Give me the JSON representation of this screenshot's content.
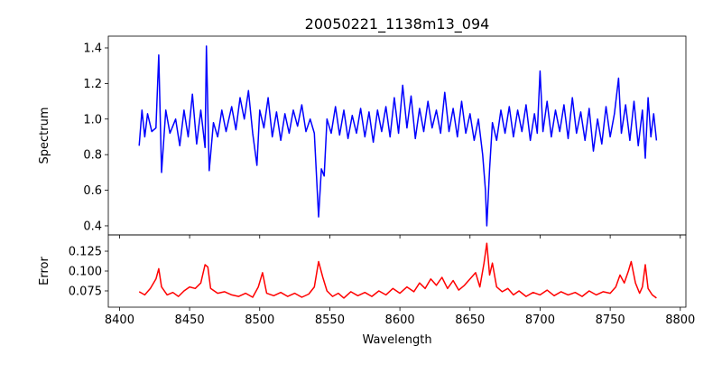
{
  "chart_data": [
    {
      "type": "line",
      "title": "20050221_1138m13_094",
      "xlabel": "",
      "ylabel": "Spectrum",
      "xlim": [
        8392,
        8804
      ],
      "ylim": [
        0.349,
        1.466
      ],
      "yticks": [
        0.4,
        0.6,
        0.8,
        1.0,
        1.2,
        1.4
      ],
      "ytick_labels": [
        "0.4",
        "0.6",
        "0.8",
        "1.0",
        "1.2",
        "1.4"
      ],
      "grid": false,
      "color": "#0000ff",
      "series": [
        {
          "name": "Spectrum",
          "x": [
            8414,
            8416,
            8418,
            8420,
            8423,
            8426,
            8428,
            8430,
            8433,
            8436,
            8440,
            8443,
            8446,
            8449,
            8452,
            8455,
            8458,
            8461,
            8462,
            8464,
            8467,
            8470,
            8473,
            8476,
            8480,
            8483,
            8486,
            8489,
            8492,
            8495,
            8498,
            8500,
            8503,
            8506,
            8509,
            8512,
            8515,
            8518,
            8521,
            8524,
            8527,
            8530,
            8533,
            8536,
            8539,
            8541,
            8542,
            8544,
            8546,
            8548,
            8551,
            8554,
            8557,
            8560,
            8563,
            8566,
            8569,
            8572,
            8575,
            8578,
            8581,
            8584,
            8587,
            8590,
            8593,
            8596,
            8599,
            8602,
            8605,
            8608,
            8611,
            8614,
            8617,
            8620,
            8623,
            8626,
            8629,
            8632,
            8635,
            8638,
            8641,
            8644,
            8647,
            8650,
            8653,
            8656,
            8659,
            8661,
            8662,
            8664,
            8666,
            8669,
            8672,
            8675,
            8678,
            8681,
            8684,
            8687,
            8690,
            8693,
            8696,
            8698,
            8700,
            8702,
            8705,
            8708,
            8711,
            8714,
            8717,
            8720,
            8723,
            8726,
            8729,
            8732,
            8735,
            8738,
            8741,
            8744,
            8747,
            8750,
            8753,
            8756,
            8758,
            8761,
            8764,
            8767,
            8770,
            8773,
            8775,
            8777,
            8779,
            8781,
            8783
          ],
          "y": [
            0.85,
            1.05,
            0.9,
            1.03,
            0.93,
            0.95,
            1.36,
            0.7,
            1.05,
            0.92,
            1.0,
            0.85,
            1.05,
            0.9,
            1.14,
            0.86,
            1.05,
            0.84,
            1.41,
            0.71,
            0.98,
            0.9,
            1.05,
            0.93,
            1.07,
            0.94,
            1.12,
            1.0,
            1.16,
            0.92,
            0.74,
            1.05,
            0.95,
            1.12,
            0.9,
            1.04,
            0.88,
            1.03,
            0.92,
            1.05,
            0.96,
            1.08,
            0.93,
            1.0,
            0.92,
            0.6,
            0.45,
            0.72,
            0.68,
            1.0,
            0.92,
            1.07,
            0.91,
            1.05,
            0.89,
            1.02,
            0.92,
            1.06,
            0.9,
            1.04,
            0.87,
            1.05,
            0.93,
            1.07,
            0.9,
            1.12,
            0.92,
            1.19,
            0.95,
            1.13,
            0.89,
            1.06,
            0.93,
            1.1,
            0.95,
            1.05,
            0.92,
            1.15,
            0.93,
            1.06,
            0.9,
            1.1,
            0.92,
            1.03,
            0.88,
            1.0,
            0.8,
            0.6,
            0.4,
            0.72,
            0.98,
            0.88,
            1.05,
            0.92,
            1.07,
            0.9,
            1.05,
            0.93,
            1.08,
            0.88,
            1.03,
            0.92,
            1.27,
            0.93,
            1.1,
            0.9,
            1.05,
            0.93,
            1.08,
            0.89,
            1.12,
            0.92,
            1.04,
            0.88,
            1.06,
            0.82,
            1.0,
            0.86,
            1.07,
            0.9,
            1.03,
            1.23,
            0.92,
            1.08,
            0.88,
            1.1,
            0.85,
            1.05,
            0.78,
            1.12,
            0.9,
            1.03,
            0.88
          ]
        }
      ]
    },
    {
      "type": "line",
      "xlabel": "Wavelength",
      "ylabel": "Error",
      "xlim": [
        8392,
        8804
      ],
      "ylim": [
        0.0545,
        0.1455
      ],
      "xticks": [
        8400,
        8450,
        8500,
        8550,
        8600,
        8650,
        8700,
        8750,
        8800
      ],
      "xtick_labels": [
        "8400",
        "8450",
        "8500",
        "8550",
        "8600",
        "8650",
        "8700",
        "8750",
        "8800"
      ],
      "yticks": [
        0.075,
        0.1,
        0.125
      ],
      "ytick_labels": [
        "0.075",
        "0.100",
        "0.125"
      ],
      "grid": false,
      "color": "#ff0000",
      "series": [
        {
          "name": "Error",
          "x": [
            8414,
            8418,
            8422,
            8426,
            8428,
            8430,
            8434,
            8438,
            8442,
            8446,
            8450,
            8454,
            8458,
            8461,
            8463,
            8465,
            8470,
            8475,
            8480,
            8485,
            8490,
            8495,
            8499,
            8502,
            8505,
            8510,
            8515,
            8520,
            8525,
            8530,
            8535,
            8539,
            8542,
            8545,
            8548,
            8552,
            8556,
            8560,
            8565,
            8570,
            8575,
            8580,
            8585,
            8590,
            8595,
            8600,
            8605,
            8610,
            8614,
            8618,
            8622,
            8626,
            8630,
            8634,
            8638,
            8642,
            8646,
            8650,
            8654,
            8657,
            8660,
            8662,
            8664,
            8666,
            8669,
            8673,
            8677,
            8681,
            8685,
            8690,
            8695,
            8700,
            8705,
            8710,
            8715,
            8720,
            8725,
            8730,
            8735,
            8740,
            8745,
            8750,
            8754,
            8757,
            8760,
            8763,
            8765,
            8768,
            8771,
            8773,
            8775,
            8777,
            8780,
            8783
          ],
          "y": [
            0.074,
            0.07,
            0.078,
            0.09,
            0.103,
            0.08,
            0.07,
            0.073,
            0.068,
            0.075,
            0.08,
            0.078,
            0.085,
            0.108,
            0.105,
            0.078,
            0.072,
            0.074,
            0.07,
            0.068,
            0.072,
            0.067,
            0.08,
            0.098,
            0.072,
            0.069,
            0.073,
            0.068,
            0.072,
            0.067,
            0.071,
            0.08,
            0.112,
            0.092,
            0.075,
            0.068,
            0.072,
            0.066,
            0.074,
            0.069,
            0.073,
            0.068,
            0.075,
            0.07,
            0.078,
            0.072,
            0.08,
            0.074,
            0.085,
            0.078,
            0.09,
            0.082,
            0.092,
            0.078,
            0.088,
            0.076,
            0.082,
            0.09,
            0.098,
            0.08,
            0.11,
            0.135,
            0.095,
            0.11,
            0.08,
            0.074,
            0.078,
            0.07,
            0.075,
            0.068,
            0.073,
            0.07,
            0.076,
            0.069,
            0.074,
            0.07,
            0.073,
            0.068,
            0.075,
            0.07,
            0.074,
            0.072,
            0.08,
            0.095,
            0.085,
            0.1,
            0.112,
            0.085,
            0.072,
            0.08,
            0.108,
            0.078,
            0.07,
            0.066
          ]
        }
      ]
    }
  ]
}
